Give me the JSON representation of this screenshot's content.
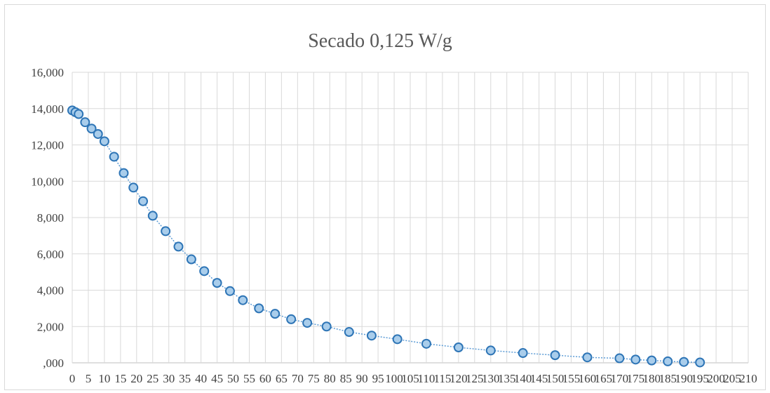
{
  "chart_data": {
    "type": "scatter",
    "title": "Secado 0,125 W/g",
    "xlabel": "",
    "ylabel": "",
    "xlim": [
      0,
      210
    ],
    "ylim": [
      0,
      16000
    ],
    "x_ticks": [
      "0",
      "5",
      "10",
      "15",
      "20",
      "25",
      "30",
      "35",
      "40",
      "45",
      "50",
      "55",
      "60",
      "65",
      "70",
      "75",
      "80",
      "85",
      "90",
      "95",
      "100",
      "105",
      "110",
      "115",
      "120",
      "125",
      "130",
      "135",
      "140",
      "145",
      "150",
      "155",
      "160",
      "165",
      "170",
      "175",
      "180",
      "185",
      "190",
      "195",
      "200",
      "205",
      "210"
    ],
    "y_ticks": [
      ",000",
      "2,000",
      "4,000",
      "6,000",
      "8,000",
      "10,000",
      "12,000",
      "14,000",
      "16,000"
    ],
    "y_tick_values": [
      0,
      2000,
      4000,
      6000,
      8000,
      10000,
      12000,
      14000,
      16000
    ],
    "grid": true,
    "legend": "none",
    "colors": {
      "line": "#5b9bd5",
      "marker_fill": "#a9cdeb",
      "marker_stroke": "#2e75b6"
    },
    "series": [
      {
        "x": [
          0,
          1,
          2,
          4,
          6,
          8,
          10,
          13,
          16,
          19,
          22,
          25,
          29,
          33,
          37,
          41,
          45,
          49,
          53,
          58,
          63,
          68,
          73,
          79,
          86,
          93,
          101,
          110,
          120,
          130,
          140,
          150,
          160,
          170,
          175,
          180,
          185,
          190,
          195
        ],
        "y": [
          13900,
          13800,
          13700,
          13250,
          12900,
          12600,
          12200,
          11350,
          10450,
          9650,
          8900,
          8100,
          7250,
          6400,
          5700,
          5050,
          4400,
          3950,
          3450,
          3000,
          2700,
          2400,
          2200,
          2000,
          1700,
          1500,
          1300,
          1050,
          850,
          680,
          540,
          420,
          300,
          250,
          180,
          130,
          80,
          50,
          20
        ]
      }
    ]
  }
}
